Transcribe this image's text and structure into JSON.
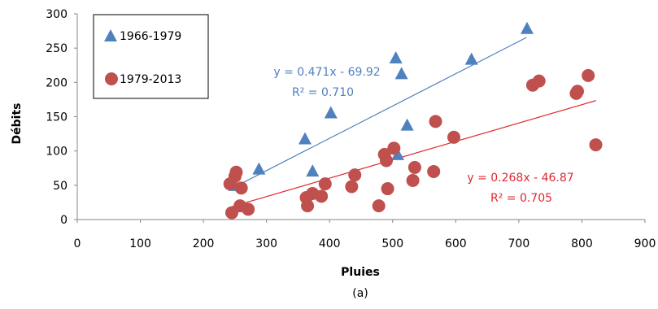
{
  "chart_data": {
    "type": "scatter",
    "xlabel": "Pluies",
    "ylabel": "Débits",
    "caption": "(a)",
    "xlim": [
      0,
      900
    ],
    "ylim": [
      0,
      300
    ],
    "xticks": [
      0,
      100,
      200,
      300,
      400,
      500,
      600,
      700,
      800,
      900
    ],
    "yticks": [
      0,
      50,
      100,
      150,
      200,
      250,
      300
    ],
    "grid": false,
    "legend_position": "top-left",
    "series": [
      {
        "name": "1966-1979",
        "marker": "triangle",
        "color": "#4f81bd",
        "points": [
          [
            250,
            50
          ],
          [
            288,
            74
          ],
          [
            361,
            118
          ],
          [
            373,
            71
          ],
          [
            402,
            156
          ],
          [
            505,
            236
          ],
          [
            508,
            95
          ],
          [
            514,
            213
          ],
          [
            523,
            138
          ],
          [
            625,
            234
          ],
          [
            713,
            279
          ]
        ],
        "trendline": {
          "equation": "y = 0.471x - 69.92",
          "r2": "R² = 0.710",
          "slope": 0.471,
          "intercept": -69.92,
          "x_range": [
            250,
            712
          ]
        }
      },
      {
        "name": "1979-2013",
        "marker": "circle",
        "color": "#c0504d",
        "points": [
          [
            242,
            52
          ],
          [
            245,
            10
          ],
          [
            250,
            63
          ],
          [
            252,
            69
          ],
          [
            258,
            20
          ],
          [
            260,
            46
          ],
          [
            271,
            15
          ],
          [
            363,
            32
          ],
          [
            365,
            20
          ],
          [
            373,
            38
          ],
          [
            387,
            34
          ],
          [
            393,
            52
          ],
          [
            435,
            48
          ],
          [
            440,
            65
          ],
          [
            478,
            20
          ],
          [
            487,
            95
          ],
          [
            490,
            86
          ],
          [
            492,
            45
          ],
          [
            502,
            104
          ],
          [
            532,
            57
          ],
          [
            535,
            76
          ],
          [
            565,
            70
          ],
          [
            568,
            143
          ],
          [
            597,
            120
          ],
          [
            722,
            196
          ],
          [
            732,
            202
          ],
          [
            791,
            184
          ],
          [
            793,
            187
          ],
          [
            810,
            210
          ],
          [
            822,
            109
          ]
        ],
        "trendline": {
          "equation": "y = 0.268x - 46.87",
          "r2": "R² = 0.705",
          "slope": 0.268,
          "intercept": -46.87,
          "x_range": [
            245,
            822
          ]
        }
      }
    ]
  }
}
